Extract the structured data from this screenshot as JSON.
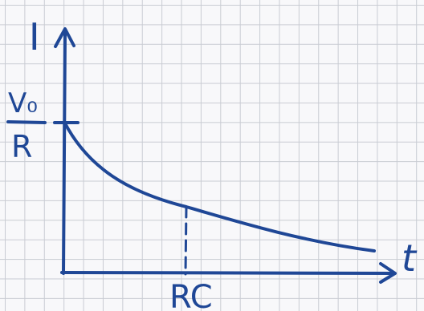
{
  "ink_color": "#1f4796",
  "paper_color": "#f8f8fa",
  "grid_color": "#c9ccd3",
  "labels": {
    "y_axis": "I",
    "x_axis": "t",
    "y_intercept_numerator": "V₀",
    "y_intercept_denominator": "R",
    "x_marker": "RC"
  }
}
